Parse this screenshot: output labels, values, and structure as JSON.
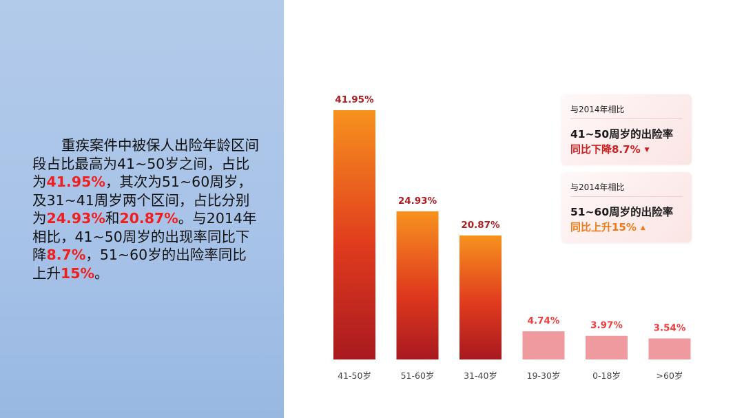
{
  "description": {
    "segments": [
      {
        "text": "重疾案件中被保人出险年龄区间段占比最高为41~50岁之间，占比为",
        "highlight": false
      },
      {
        "text": "41.95%",
        "highlight": true
      },
      {
        "text": "，其次为51~60周岁，及31~41周岁两个区间，占比分别为",
        "highlight": false
      },
      {
        "text": "24.93%",
        "highlight": true
      },
      {
        "text": "和",
        "highlight": false
      },
      {
        "text": "20.87%",
        "highlight": true
      },
      {
        "text": "。与2014年相比，41~50周岁的出现率同比下降",
        "highlight": false
      },
      {
        "text": "8.7%",
        "highlight": true
      },
      {
        "text": "，51~60岁的出险率同比上升",
        "highlight": false
      },
      {
        "text": "15%",
        "highlight": true
      },
      {
        "text": "。",
        "highlight": false
      }
    ]
  },
  "cards": [
    {
      "heading": "与2014年相比",
      "line1": "41~50周岁的出险率",
      "line2": "同比下降8.7%",
      "arrow": "▼",
      "arrow_icon": "triangle-down-icon",
      "color": "#cc1f1f"
    },
    {
      "heading": "与2014年相比",
      "line1": "51~60周岁的出险率",
      "line2": "同比上升15%",
      "arrow": "▲",
      "arrow_icon": "triangle-up-icon",
      "color": "#f07b16"
    }
  ],
  "chart_data": {
    "type": "bar",
    "categories": [
      "41-50岁",
      "51-60岁",
      "31-40岁",
      "19-30岁",
      "0-18岁",
      ">60岁"
    ],
    "values": [
      41.95,
      24.93,
      20.87,
      4.74,
      3.97,
      3.54
    ],
    "value_labels": [
      "41.95%",
      "24.93%",
      "20.87%",
      "4.74%",
      "3.97%",
      "3.54%"
    ],
    "ylim": [
      0,
      41.95
    ],
    "grid": false,
    "colors": {
      "major_top": "#f7921e",
      "major_mid": "#e03a1e",
      "major_bottom": "#a8191f",
      "minor_fill": "#ee9a9e",
      "major_label": "#b01d22",
      "minor_label": "#ee3f3f"
    }
  }
}
